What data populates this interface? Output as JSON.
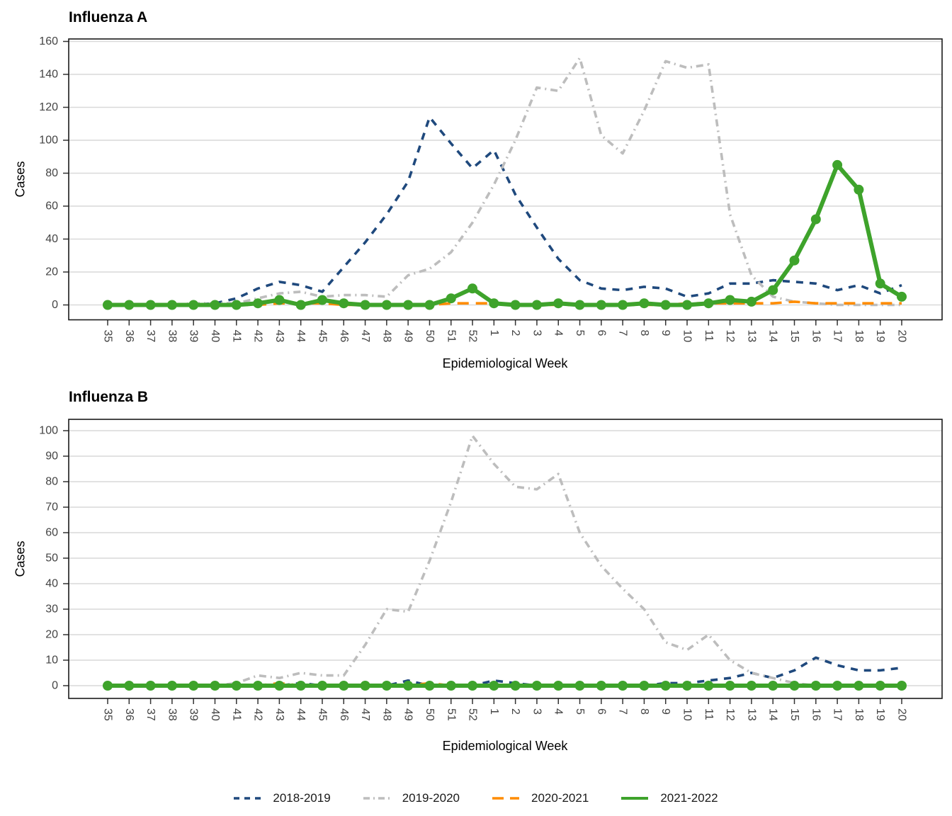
{
  "figure": {
    "background": "#ffffff",
    "panel_border_color": "#1a1a1a",
    "gridline_color": "#d9d9d9",
    "tick_text_color": "#444444"
  },
  "legend": {
    "items": [
      {
        "label": "2018-2019",
        "color": "#1f497d",
        "pattern": "dashed"
      },
      {
        "label": "2019-2020",
        "color": "#bdbdbd",
        "pattern": "dotdash"
      },
      {
        "label": "2020-2021",
        "color": "#ff8c00",
        "pattern": "longdash"
      },
      {
        "label": "2021-2022",
        "color": "#3ea32b",
        "pattern": "solid"
      }
    ]
  },
  "chart_data": [
    {
      "type": "line",
      "title": "Influenza A",
      "xlabel": "Epidemiological Week",
      "ylabel": "Cases",
      "ylim": [
        0,
        160
      ],
      "ytick_step": 20,
      "y_ticks": [
        "0",
        "20",
        "40",
        "60",
        "80",
        "100",
        "120",
        "140",
        "160"
      ],
      "grid": "horizontal",
      "legend_position": "bottom",
      "categories": [
        "35",
        "36",
        "37",
        "38",
        "39",
        "40",
        "41",
        "42",
        "43",
        "44",
        "45",
        "46",
        "47",
        "48",
        "49",
        "50",
        "51",
        "52",
        "1",
        "2",
        "3",
        "4",
        "5",
        "6",
        "7",
        "8",
        "9",
        "10",
        "11",
        "12",
        "13",
        "14",
        "15",
        "16",
        "17",
        "18",
        "19",
        "20"
      ],
      "series": [
        {
          "name": "2018-2019",
          "values": [
            0,
            0,
            0,
            0,
            0,
            1,
            4,
            10,
            14,
            12,
            8,
            23,
            38,
            55,
            75,
            114,
            98,
            83,
            94,
            67,
            47,
            28,
            15,
            10,
            9,
            11,
            10,
            5,
            7,
            13,
            13,
            15,
            14,
            13,
            9,
            12,
            7,
            12
          ]
        },
        {
          "name": "2019-2020",
          "values": [
            0,
            0,
            0,
            0,
            1,
            1,
            1,
            4,
            7,
            8,
            5,
            6,
            6,
            5,
            18,
            22,
            32,
            50,
            73,
            100,
            132,
            130,
            150,
            103,
            92,
            118,
            148,
            144,
            146,
            55,
            18,
            5,
            2,
            1,
            0,
            0,
            0,
            0
          ]
        },
        {
          "name": "2020-2021",
          "values": [
            0,
            0,
            0,
            0,
            0,
            0,
            0,
            0,
            1,
            1,
            1,
            0,
            0,
            0,
            0,
            0,
            1,
            1,
            1,
            0,
            0,
            0,
            0,
            0,
            0,
            0,
            0,
            1,
            1,
            1,
            1,
            1,
            2,
            1,
            1,
            1,
            1,
            1
          ]
        },
        {
          "name": "2021-2022",
          "values": [
            0,
            0,
            0,
            0,
            0,
            0,
            0,
            1,
            3,
            0,
            3,
            1,
            0,
            0,
            0,
            0,
            4,
            10,
            1,
            0,
            0,
            1,
            0,
            0,
            0,
            1,
            0,
            0,
            1,
            3,
            2,
            9,
            27,
            52,
            85,
            70,
            13,
            5
          ]
        }
      ]
    },
    {
      "type": "line",
      "title": "Influenza B",
      "xlabel": "Epidemiological Week",
      "ylabel": "Cases",
      "ylim": [
        0,
        100
      ],
      "ytick_step": 10,
      "y_ticks": [
        "0",
        "10",
        "20",
        "30",
        "40",
        "50",
        "60",
        "70",
        "80",
        "90",
        "100"
      ],
      "grid": "horizontal",
      "legend_position": "bottom",
      "categories": [
        "35",
        "36",
        "37",
        "38",
        "39",
        "40",
        "41",
        "42",
        "43",
        "44",
        "45",
        "46",
        "47",
        "48",
        "49",
        "50",
        "51",
        "52",
        "1",
        "2",
        "3",
        "4",
        "5",
        "6",
        "7",
        "8",
        "9",
        "10",
        "11",
        "12",
        "13",
        "14",
        "15",
        "16",
        "17",
        "18",
        "19",
        "20"
      ],
      "series": [
        {
          "name": "2018-2019",
          "values": [
            0,
            0,
            0,
            0,
            0,
            0,
            0,
            0,
            0,
            1,
            0,
            0,
            0,
            0,
            2,
            0,
            0,
            0,
            2,
            1,
            0,
            0,
            0,
            0,
            0,
            0,
            1,
            1,
            2,
            3,
            5,
            3,
            6,
            11,
            8,
            6,
            6,
            7
          ]
        },
        {
          "name": "2019-2020",
          "values": [
            0,
            0,
            0,
            0,
            0,
            0,
            1,
            4,
            3,
            5,
            4,
            4,
            16,
            30,
            29,
            49,
            72,
            98,
            87,
            78,
            77,
            83,
            60,
            47,
            38,
            30,
            17,
            14,
            20,
            10,
            5,
            3,
            1,
            0,
            0,
            0,
            0,
            0
          ]
        },
        {
          "name": "2020-2021",
          "values": [
            0,
            0,
            0,
            0,
            0,
            0,
            0,
            0,
            1,
            0,
            0,
            0,
            0,
            0,
            0,
            1,
            0,
            0,
            0,
            0,
            0,
            0,
            0,
            0,
            0,
            0,
            0,
            0,
            0,
            0,
            0,
            0,
            0,
            0,
            0,
            0,
            0,
            0
          ]
        },
        {
          "name": "2021-2022",
          "values": [
            0,
            0,
            0,
            0,
            0,
            0,
            0,
            0,
            0,
            0,
            0,
            0,
            0,
            0,
            0,
            0,
            0,
            0,
            0,
            0,
            0,
            0,
            0,
            0,
            0,
            0,
            0,
            0,
            0,
            0,
            0,
            0,
            0,
            0,
            0,
            0,
            0,
            0
          ]
        }
      ]
    }
  ]
}
